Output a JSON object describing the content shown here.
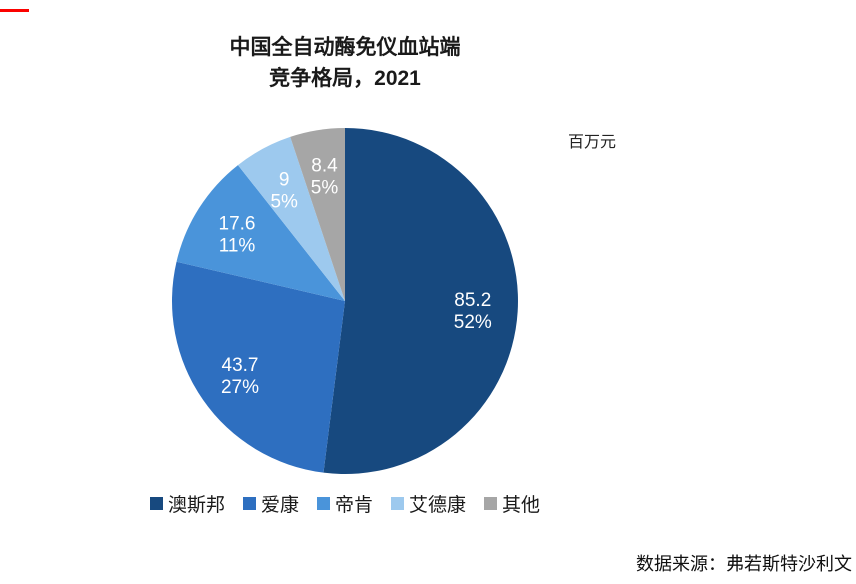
{
  "page": {
    "source_note": "数据来源：弗若斯特沙利文",
    "red_mark_color": "#fb0200"
  },
  "chart": {
    "title_line1": "中国全自动酶免仪血站端",
    "title_line2": "竞争格局，2021",
    "unit_label": "百万元"
  },
  "chart_data": {
    "type": "pie",
    "title": "中国全自动酶免仪血站端竞争格局，2021",
    "unit": "百万元",
    "categories": [
      "澳斯邦",
      "爱康",
      "帝肯",
      "艾德康",
      "其他"
    ],
    "values": [
      85.2,
      43.7,
      17.6,
      9,
      8.4
    ],
    "value_labels": [
      "85.2",
      "43.7",
      "17.6",
      "9",
      "8.4"
    ],
    "percent_labels": [
      "52%",
      "27%",
      "11%",
      "5%",
      "5%"
    ],
    "colors": [
      "#17497F",
      "#2E6FC0",
      "#4A94DA",
      "#9DC9EE",
      "#A6A6A6"
    ],
    "start_angle_deg": 0,
    "direction": "clockwise",
    "legend_position": "bottom",
    "label_color": "#ffffff",
    "source": "数据来源：弗若斯特沙利文"
  }
}
